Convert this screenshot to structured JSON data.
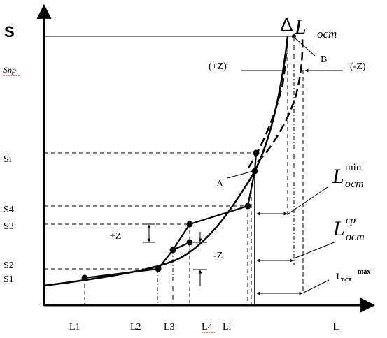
{
  "axes": {
    "y_title": "S",
    "x_title": "L"
  },
  "y_labels": {
    "snp": "Snp",
    "si": "Si",
    "s4": "S4",
    "s3": "S3",
    "s2": "S2",
    "s1": "S1"
  },
  "x_labels": {
    "l1": "L1",
    "l2": "L2",
    "l3": "L3",
    "l4": "L4",
    "li": "Li"
  },
  "annotations": {
    "delta": "Δ",
    "l_ost_main": "L",
    "l_ost_sub": "ocm",
    "point_a": "A",
    "point_b": "B",
    "plus_z_top": "(+Z)",
    "minus_z_top": "(-Z)",
    "plus_z": "+Z",
    "minus_z": "-Z",
    "lmin_main": "L",
    "lmin_sup": "min",
    "lmin_sub": "ocm",
    "lcp_main": "L",
    "lcp_sup": "cp",
    "lcp_sub": "ocm",
    "lmax_main": "L",
    "lmax_sub": "ост",
    "lmax_sup": "max"
  },
  "colors": {
    "ink": "#000000",
    "spellcheck": "#c00000",
    "background": "#ffffff"
  }
}
